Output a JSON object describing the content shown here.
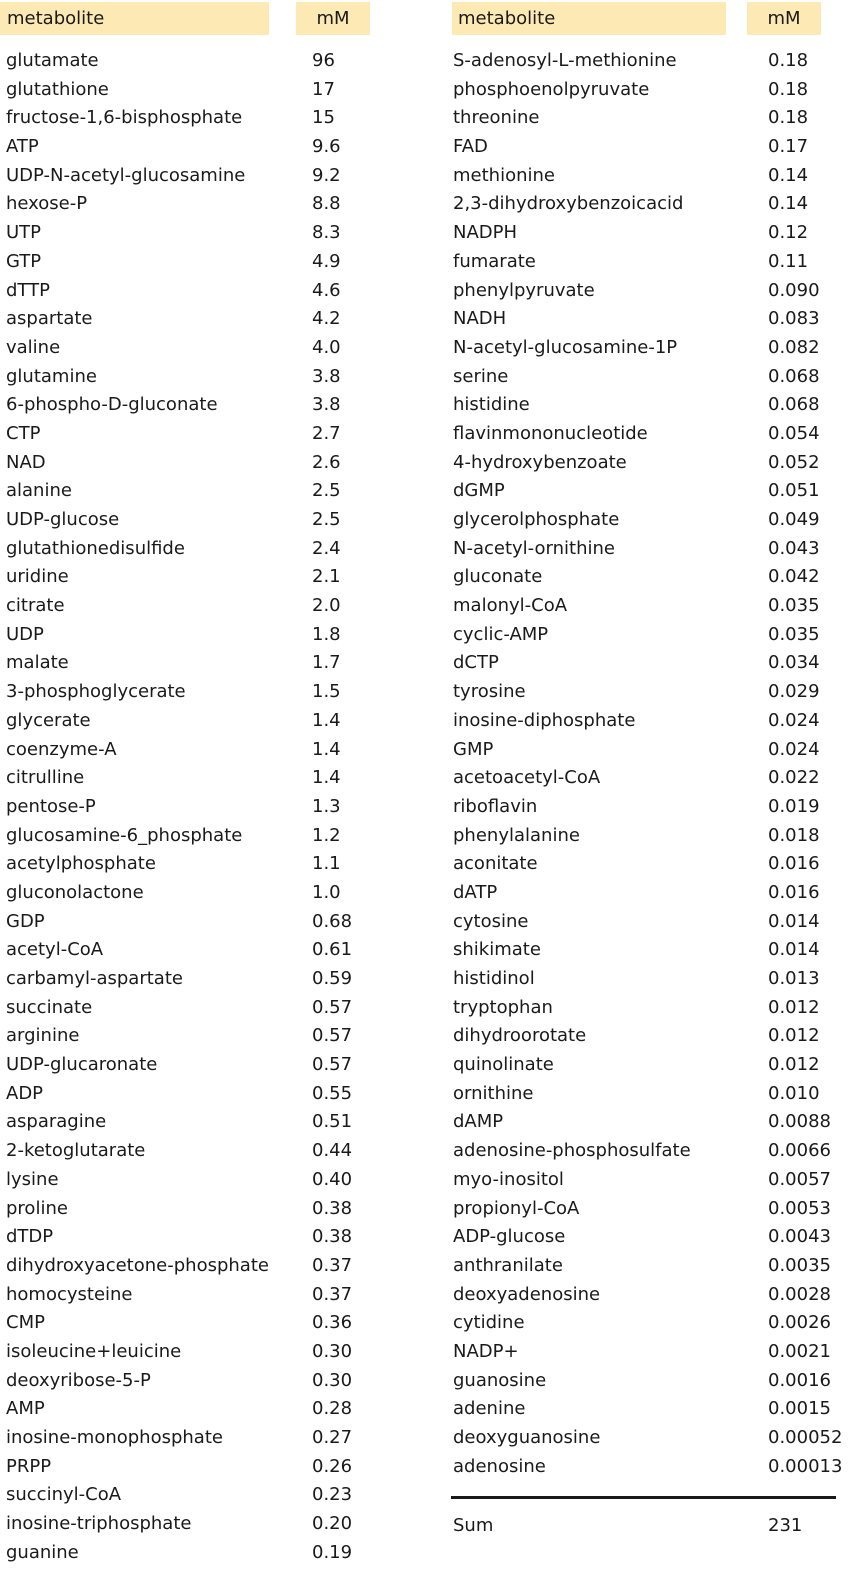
{
  "headers": {
    "name": "metabolite",
    "value": "mM"
  },
  "left_rows": [
    {
      "name": "glutamate",
      "value": "96"
    },
    {
      "name": "glutathione",
      "value": "17"
    },
    {
      "name": "fructose-1,6-bisphosphate",
      "value": "15"
    },
    {
      "name": "ATP",
      "value": "9.6"
    },
    {
      "name": "UDP-N-acetyl-glucosamine",
      "value": "9.2"
    },
    {
      "name": "hexose-P",
      "value": "8.8"
    },
    {
      "name": "UTP",
      "value": "8.3"
    },
    {
      "name": "GTP",
      "value": "4.9"
    },
    {
      "name": "dTTP",
      "value": "4.6"
    },
    {
      "name": "aspartate",
      "value": "4.2"
    },
    {
      "name": "valine",
      "value": "4.0"
    },
    {
      "name": "glutamine",
      "value": "3.8"
    },
    {
      "name": "6-phospho-D-gluconate",
      "value": "3.8"
    },
    {
      "name": "CTP",
      "value": "2.7"
    },
    {
      "name": "NAD",
      "value": "2.6"
    },
    {
      "name": "alanine",
      "value": "2.5"
    },
    {
      "name": "UDP-glucose",
      "value": "2.5"
    },
    {
      "name": "glutathionedisulfide",
      "value": "2.4"
    },
    {
      "name": "uridine",
      "value": "2.1"
    },
    {
      "name": "citrate",
      "value": "2.0"
    },
    {
      "name": "UDP",
      "value": "1.8"
    },
    {
      "name": "malate",
      "value": "1.7"
    },
    {
      "name": "3-phosphoglycerate",
      "value": "1.5"
    },
    {
      "name": "glycerate",
      "value": "1.4"
    },
    {
      "name": "coenzyme-A",
      "value": "1.4"
    },
    {
      "name": "citrulline",
      "value": "1.4"
    },
    {
      "name": "pentose-P",
      "value": "1.3"
    },
    {
      "name": "glucosamine-6_phosphate",
      "value": "1.2"
    },
    {
      "name": "acetylphosphate",
      "value": "1.1"
    },
    {
      "name": "gluconolactone",
      "value": "1.0"
    },
    {
      "name": "GDP",
      "value": "0.68"
    },
    {
      "name": "acetyl-CoA",
      "value": "0.61"
    },
    {
      "name": "carbamyl-aspartate",
      "value": "0.59"
    },
    {
      "name": "succinate",
      "value": "0.57"
    },
    {
      "name": "arginine",
      "value": "0.57"
    },
    {
      "name": "UDP-glucaronate",
      "value": "0.57"
    },
    {
      "name": "ADP",
      "value": "0.55"
    },
    {
      "name": "asparagine",
      "value": "0.51"
    },
    {
      "name": "2-ketoglutarate",
      "value": "0.44"
    },
    {
      "name": "lysine",
      "value": "0.40"
    },
    {
      "name": "proline",
      "value": "0.38"
    },
    {
      "name": "dTDP",
      "value": "0.38"
    },
    {
      "name": "dihydroxyacetone-phosphate",
      "value": "0.37"
    },
    {
      "name": "homocysteine",
      "value": "0.37"
    },
    {
      "name": "CMP",
      "value": "0.36"
    },
    {
      "name": "isoleucine+leuicine",
      "value": "0.30"
    },
    {
      "name": "deoxyribose-5-P",
      "value": "0.30"
    },
    {
      "name": "AMP",
      "value": "0.28"
    },
    {
      "name": "inosine-monophosphate",
      "value": "0.27"
    },
    {
      "name": "PRPP",
      "value": "0.26"
    },
    {
      "name": "succinyl-CoA",
      "value": "0.23"
    },
    {
      "name": "inosine-triphosphate",
      "value": "0.20"
    },
    {
      "name": "guanine",
      "value": "0.19"
    }
  ],
  "right_rows": [
    {
      "name": "S-adenosyl-L-methionine",
      "value": "0.18"
    },
    {
      "name": "phosphoenolpyruvate",
      "value": "0.18"
    },
    {
      "name": "threonine",
      "value": "0.18"
    },
    {
      "name": "FAD",
      "value": "0.17"
    },
    {
      "name": "methionine",
      "value": "0.14"
    },
    {
      "name": "2,3-dihydroxybenzoicacid",
      "value": "0.14"
    },
    {
      "name": "NADPH",
      "value": "0.12"
    },
    {
      "name": "fumarate",
      "value": "0.11"
    },
    {
      "name": "phenylpyruvate",
      "value": "0.090"
    },
    {
      "name": "NADH",
      "value": "0.083"
    },
    {
      "name": "N-acetyl-glucosamine-1P",
      "value": "0.082"
    },
    {
      "name": "serine",
      "value": "0.068"
    },
    {
      "name": "histidine",
      "value": "0.068"
    },
    {
      "name": "flavinmononucleotide",
      "value": "0.054"
    },
    {
      "name": "4-hydroxybenzoate",
      "value": "0.052"
    },
    {
      "name": "dGMP",
      "value": "0.051"
    },
    {
      "name": "glycerolphosphate",
      "value": "0.049"
    },
    {
      "name": "N-acetyl-ornithine",
      "value": "0.043"
    },
    {
      "name": "gluconate",
      "value": "0.042"
    },
    {
      "name": "malonyl-CoA",
      "value": "0.035"
    },
    {
      "name": "cyclic-AMP",
      "value": "0.035"
    },
    {
      "name": "dCTP",
      "value": "0.034"
    },
    {
      "name": "tyrosine",
      "value": "0.029"
    },
    {
      "name": "inosine-diphosphate",
      "value": "0.024"
    },
    {
      "name": "GMP",
      "value": "0.024"
    },
    {
      "name": "acetoacetyl-CoA",
      "value": "0.022"
    },
    {
      "name": "riboflavin",
      "value": "0.019"
    },
    {
      "name": "phenylalanine",
      "value": "0.018"
    },
    {
      "name": "aconitate",
      "value": "0.016"
    },
    {
      "name": "dATP",
      "value": "0.016"
    },
    {
      "name": "cytosine",
      "value": "0.014"
    },
    {
      "name": "shikimate",
      "value": "0.014"
    },
    {
      "name": "histidinol",
      "value": "0.013"
    },
    {
      "name": "tryptophan",
      "value": "0.012"
    },
    {
      "name": "dihydroorotate",
      "value": "0.012"
    },
    {
      "name": "quinolinate",
      "value": "0.012"
    },
    {
      "name": "ornithine",
      "value": "0.010"
    },
    {
      "name": "dAMP",
      "value": "0.0088"
    },
    {
      "name": "adenosine-phosphosulfate",
      "value": "0.0066"
    },
    {
      "name": "myo-inositol",
      "value": "0.0057"
    },
    {
      "name": "propionyl-CoA",
      "value": "0.0053"
    },
    {
      "name": "ADP-glucose",
      "value": "0.0043"
    },
    {
      "name": "anthranilate",
      "value": "0.0035"
    },
    {
      "name": "deoxyadenosine",
      "value": "0.0028"
    },
    {
      "name": "cytidine",
      "value": "0.0026"
    },
    {
      "name": "NADP+",
      "value": "0.0021"
    },
    {
      "name": "guanosine",
      "value": "0.0016"
    },
    {
      "name": "adenine",
      "value": "0.0015"
    },
    {
      "name": "deoxyguanosine",
      "value": "0.00052"
    },
    {
      "name": "adenosine",
      "value": "0.00013"
    }
  ],
  "sum": {
    "label": "Sum",
    "value": "231"
  },
  "colors": {
    "header_bg": "#fde9b3",
    "text": "#1a1a1a"
  }
}
